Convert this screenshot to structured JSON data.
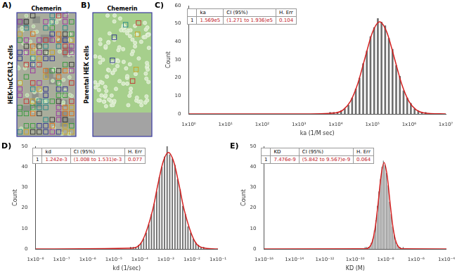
{
  "image_panels": [
    {
      "label": "A)",
      "title": "Chemerin",
      "side_label": "HEK-huCCRL2 cells"
    },
    {
      "label": "B)",
      "title": "Chemerin",
      "side_label": "Parental HEK cells"
    }
  ],
  "chart_data": [
    {
      "type": "histogram",
      "panel_label": "C)",
      "x_label": "ka (1/M sec)",
      "y_label": "Count",
      "log": "x",
      "grid": false,
      "color": "#6e6e6e",
      "table": {
        "header": [
          "ka",
          "CI (95%)",
          "H. Err"
        ],
        "rows": [
          [
            "1",
            "1.569e5",
            "(1.271 to 1.936)e5",
            "0.104"
          ]
        ]
      },
      "bins": [
        6310.0,
        7943.0,
        10000.0,
        12590.0,
        15850.0,
        19950.0,
        25120.0,
        31620.0,
        39810.0,
        50120.0,
        63100.0,
        79430.0,
        100000.0,
        125900.0,
        158500.0,
        199500.0,
        251200.0,
        316200.0,
        398100.0,
        501200.0,
        631000.0,
        794300.0,
        1000000.0,
        1259000.0,
        1585000.0,
        1995000.0,
        2512000.0,
        3162000.0,
        3981000.0
      ],
      "values": [
        1,
        1,
        1,
        2,
        3,
        5,
        9,
        14,
        20,
        28,
        35,
        43,
        48,
        53,
        51,
        49,
        42,
        36,
        27,
        21,
        13,
        9,
        6,
        3,
        2,
        1,
        1,
        0
      ],
      "fit": {
        "color": "#d42020",
        "x": [
          1,
          1000.0,
          10000.0,
          15850.0,
          25120.0,
          39810.0,
          63100.0,
          100000.0,
          158500.0,
          251200.0,
          398100.0,
          631000.0,
          1000000.0,
          1585000.0,
          2512000.0,
          10000000.0
        ],
        "values": [
          0,
          0,
          0.6,
          2.2,
          6.9,
          16.6,
          31,
          45,
          51,
          45,
          31,
          16.6,
          6.9,
          2.2,
          0.6,
          0
        ]
      },
      "xlim": [
        1,
        10000000.0
      ],
      "xticks": [
        {
          "value": 1,
          "label": "1x10⁰"
        },
        {
          "value": 10,
          "label": "1x10¹"
        },
        {
          "value": 100,
          "label": "1x10²"
        },
        {
          "value": 1000,
          "label": "1x10³"
        },
        {
          "value": 10000.0,
          "label": "1x10⁴"
        },
        {
          "value": 100000.0,
          "label": "1x10⁵"
        },
        {
          "value": 1000000.0,
          "label": "1x10⁶"
        },
        {
          "value": 10000000.0,
          "label": "1x10⁷"
        }
      ],
      "ylim": [
        0,
        60
      ],
      "yticks": [
        0,
        10,
        20,
        30,
        40,
        50,
        60
      ]
    },
    {
      "type": "histogram",
      "panel_label": "D)",
      "x_label": "kd (1/sec)",
      "y_label": "Count",
      "log": "x",
      "grid": false,
      "color": "#6e6e6e",
      "table": {
        "header": [
          "kd",
          "CI (95%)",
          "H. Err"
        ],
        "rows": [
          [
            "1",
            "1.242e-3",
            "(1.008 to 1.531)e-3",
            "0.077"
          ]
        ]
      },
      "bins": [
        3.981e-05,
        5.012e-05,
        6.31e-05,
        7.943e-05,
        0.0001,
        0.0001259,
        0.0001585,
        0.0001995,
        0.0002512,
        0.0003162,
        0.0003981,
        0.0005012,
        0.000631,
        0.0007943,
        0.001,
        0.001259,
        0.001585,
        0.001995,
        0.002512,
        0.003162,
        0.003981,
        0.005012,
        0.00631,
        0.007943,
        0.01,
        0.01259,
        0.01585,
        0.01995,
        0.02512,
        0.03162,
        0.03981
      ],
      "values": [
        1,
        1,
        1,
        2,
        3,
        5,
        8,
        12,
        17,
        22,
        28,
        35,
        40,
        45,
        50,
        46,
        44,
        41,
        34,
        29,
        21,
        17,
        11,
        8,
        5,
        3,
        2,
        1,
        1,
        0
      ],
      "fit": {
        "color": "#d42020",
        "x": [
          1e-08,
          5.012e-05,
          0.0001259,
          0.0003162,
          0.0005012,
          0.0007943,
          0.001259,
          0.001995,
          0.003162,
          0.005012,
          0.01259,
          0.03162,
          0.1
        ],
        "values": [
          0,
          0.4,
          4,
          19.3,
          31.7,
          42.6,
          47,
          42.6,
          31.7,
          19.3,
          4,
          0.4,
          0
        ]
      },
      "xlim": [
        1e-08,
        0.1
      ],
      "xticks": [
        {
          "value": 1e-08,
          "label": "1x10⁻⁸"
        },
        {
          "value": 1e-07,
          "label": "1x10⁻⁷"
        },
        {
          "value": 1e-06,
          "label": "1x10⁻⁶"
        },
        {
          "value": 1e-05,
          "label": "1x10⁻⁵"
        },
        {
          "value": 0.0001,
          "label": "1x10⁻⁴"
        },
        {
          "value": 0.001,
          "label": "1x10⁻³"
        },
        {
          "value": 0.01,
          "label": "1x10⁻²"
        },
        {
          "value": 0.1,
          "label": "1x10⁻¹"
        }
      ],
      "ylim": [
        0,
        50
      ],
      "yticks": [
        0,
        10,
        20,
        30,
        40,
        50
      ]
    },
    {
      "type": "histogram",
      "panel_label": "E)",
      "x_label": "KD (M)",
      "y_label": "Count",
      "log": "x",
      "grid": false,
      "color": "#6e6e6e",
      "table": {
        "header": [
          "KD",
          "CI (95%)",
          "H. Err"
        ],
        "rows": [
          [
            "1",
            "7.476e-9",
            "(5.842 to 9.567)e-9",
            "0.064"
          ]
        ]
      },
      "bins": [
        3.981e-10,
        5.012e-10,
        6.31e-10,
        7.943e-10,
        1e-09,
        1.259e-09,
        1.585e-09,
        1.995e-09,
        2.512e-09,
        3.162e-09,
        3.981e-09,
        5.012e-09,
        6.31e-09,
        7.943e-09,
        1e-08,
        1.259e-08,
        1.585e-08,
        1.995e-08,
        2.512e-08,
        3.162e-08,
        3.981e-08,
        5.012e-08,
        6.31e-08,
        7.943e-08,
        1e-07,
        1.259e-07,
        1.585e-07
      ],
      "values": [
        1,
        1,
        1,
        1,
        3,
        5,
        9,
        14,
        21,
        28,
        34,
        40,
        43,
        41,
        37,
        31,
        23,
        17,
        11,
        7,
        4,
        2,
        1,
        1,
        0,
        1
      ],
      "fit": {
        "color": "#d42020",
        "x": [
          1e-16,
          5.012e-10,
          1.259e-09,
          1.995e-09,
          3.162e-09,
          5.012e-09,
          7.943e-09,
          1.259e-08,
          1.995e-08,
          3.162e-08,
          5.012e-08,
          1.259e-07,
          0.0001
        ],
        "values": [
          0,
          0.1,
          3.1,
          9.7,
          21.9,
          35.7,
          42,
          35.7,
          21.9,
          9.7,
          3.1,
          0.1,
          0
        ]
      },
      "xlim": [
        1e-16,
        0.0001
      ],
      "xticks": [
        {
          "value": 1e-16,
          "label": "1x10⁻¹⁶"
        },
        {
          "value": 1e-14,
          "label": "1x10⁻¹⁴"
        },
        {
          "value": 1e-12,
          "label": "1x10⁻¹²"
        },
        {
          "value": 1e-10,
          "label": "1x10⁻¹⁰"
        },
        {
          "value": 1e-08,
          "label": "1x10⁻⁸"
        },
        {
          "value": 1e-06,
          "label": "1x10⁻⁶"
        },
        {
          "value": 0.0001,
          "label": "1x10⁻⁴"
        }
      ],
      "ylim": [
        0,
        50
      ],
      "yticks": [
        0,
        10,
        20,
        30,
        40,
        50
      ]
    }
  ]
}
